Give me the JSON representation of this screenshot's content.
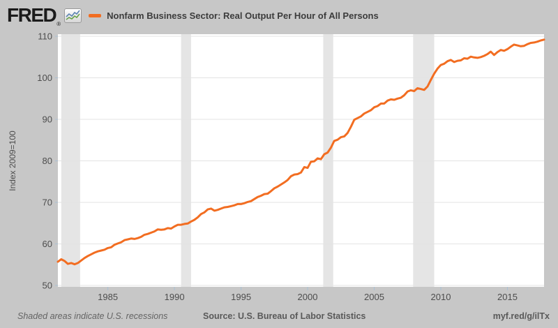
{
  "header": {
    "logo_text": "FRED",
    "registered_mark": "®",
    "series_title": "Nonfarm Business Sector: Real Output Per Hour of All Persons"
  },
  "footer": {
    "recession_note": "Shaded areas indicate U.S. recessions",
    "source": "Source: U.S. Bureau of Labor Statistics",
    "short_url": "myf.red/g/ilTx"
  },
  "colors": {
    "background": "#c7c7c7",
    "plot_background": "#ffffff",
    "line": "#f26d21",
    "recession_band": "#e5e5e5",
    "gridline": "#e3e3e3",
    "tick": "#a9c0d4",
    "axis_text": "#4d4d4d",
    "logo_icon_line1": "#5b84b1",
    "logo_icon_line2": "#67a14a"
  },
  "chart_data": {
    "type": "line",
    "title": "Nonfarm Business Sector: Real Output Per Hour of All Persons",
    "xlabel": "",
    "ylabel": "Index 2009=100",
    "ylim": [
      50,
      110
    ],
    "x_domain": [
      1981.25,
      2017.75
    ],
    "y_ticks": [
      50,
      60,
      70,
      80,
      90,
      100,
      110
    ],
    "x_ticks": [
      1985,
      1990,
      1995,
      2000,
      2005,
      2010,
      2015
    ],
    "grid": "horizontal",
    "legend_position": "top-left header",
    "series_name": "Nonfarm Business Sector: Real Output Per Hour of All Persons",
    "frequency": "quarterly",
    "x_start": 1981.25,
    "x_step": 0.25,
    "recessions": [
      [
        1981.5,
        1982.92
      ],
      [
        1990.5,
        1991.25
      ],
      [
        2001.17,
        2001.92
      ],
      [
        2007.92,
        2009.5
      ]
    ],
    "values": [
      55.7,
      56.3,
      55.9,
      55.2,
      55.4,
      55.1,
      55.4,
      56.0,
      56.6,
      57.1,
      57.5,
      57.9,
      58.2,
      58.4,
      58.6,
      59.0,
      59.2,
      59.8,
      60.1,
      60.4,
      60.9,
      61.1,
      61.3,
      61.2,
      61.4,
      61.7,
      62.2,
      62.4,
      62.7,
      63.0,
      63.5,
      63.4,
      63.5,
      63.8,
      63.7,
      64.2,
      64.6,
      64.6,
      64.8,
      64.9,
      65.4,
      65.8,
      66.4,
      67.2,
      67.6,
      68.3,
      68.5,
      68.0,
      68.2,
      68.5,
      68.8,
      68.9,
      69.1,
      69.3,
      69.6,
      69.6,
      69.8,
      70.1,
      70.3,
      70.8,
      71.3,
      71.6,
      72.0,
      72.1,
      72.7,
      73.4,
      73.8,
      74.3,
      74.8,
      75.4,
      76.3,
      76.7,
      76.8,
      77.2,
      78.5,
      78.3,
      79.8,
      79.9,
      80.6,
      80.4,
      81.6,
      82.0,
      83.2,
      84.8,
      85.1,
      85.7,
      85.9,
      86.7,
      88.2,
      89.9,
      90.3,
      90.7,
      91.4,
      91.8,
      92.2,
      92.9,
      93.2,
      93.8,
      93.8,
      94.5,
      94.8,
      94.7,
      95.0,
      95.2,
      95.8,
      96.7,
      97.0,
      96.8,
      97.5,
      97.3,
      97.1,
      97.9,
      99.5,
      101.0,
      102.2,
      103.1,
      103.4,
      104.0,
      104.3,
      103.8,
      104.1,
      104.2,
      104.7,
      104.6,
      105.1,
      104.9,
      104.8,
      105.0,
      105.3,
      105.7,
      106.3,
      105.5,
      106.2,
      106.7,
      106.5,
      106.9,
      107.5,
      108.0,
      107.8,
      107.6,
      107.7,
      108.1,
      108.4,
      108.5,
      108.7,
      109.0,
      109.2
    ]
  }
}
